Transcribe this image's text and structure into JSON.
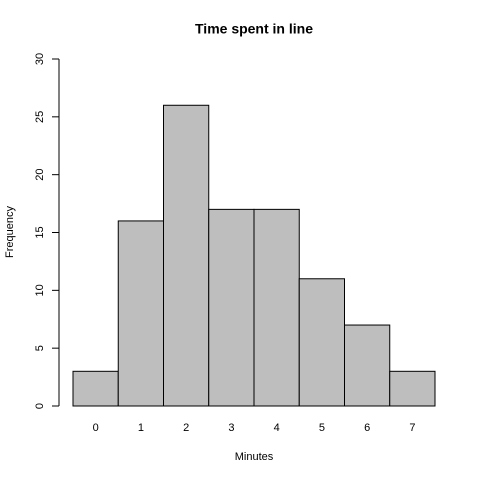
{
  "chart_data": {
    "type": "bar",
    "title": "Time spent in line",
    "x_label": "Minutes",
    "y_label": "Frequency",
    "categories": [
      "0",
      "1",
      "2",
      "3",
      "4",
      "5",
      "6",
      "7"
    ],
    "values": [
      3,
      16,
      26,
      17,
      17,
      11,
      7,
      3
    ],
    "color": "#bebebe",
    "ylim": [
      0,
      30
    ],
    "yticks": [
      0,
      5,
      10,
      15,
      20,
      25,
      30
    ],
    "grid": false
  }
}
